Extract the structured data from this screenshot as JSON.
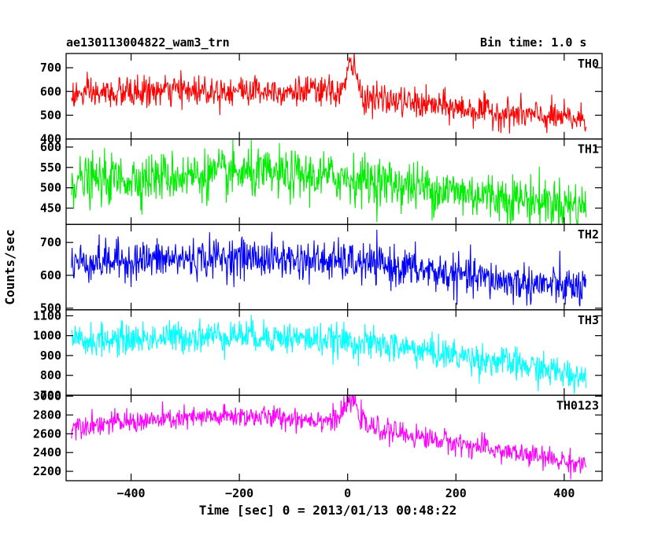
{
  "header": {
    "title": "ae130113004822_wam3_trn",
    "bin_time": "Bin time: 1.0 s"
  },
  "chart_data": {
    "type": "line",
    "title": "ae130113004822_wam3_trn",
    "subtitle": "Bin time: 1.0 s",
    "xlabel": "Time [sec] 0 = 2013/01/13 00:48:22",
    "ylabel": "Counts/sec",
    "xlim": [
      -520,
      470
    ],
    "x_ticks": [
      -400,
      -200,
      0,
      200,
      400
    ],
    "x_tick_labels": [
      "−400",
      "−200",
      "0",
      "200",
      "400"
    ],
    "x_range_data": [
      -510,
      440
    ],
    "bin_time_s": 1.0,
    "grid": false,
    "panels": [
      {
        "name": "TH0",
        "color": "#ff0000",
        "ylim": [
          400,
          760
        ],
        "y_ticks": [
          400,
          500,
          600,
          700
        ],
        "noise_sigma": 32,
        "trend": [
          [
            -510,
            585
          ],
          [
            -300,
            605
          ],
          [
            -150,
            605
          ],
          [
            0,
            595
          ],
          [
            30,
            575
          ],
          [
            100,
            555
          ],
          [
            200,
            530
          ],
          [
            300,
            505
          ],
          [
            440,
            480
          ]
        ],
        "peaks": [
          {
            "x": 8,
            "height": 130,
            "width": 8
          }
        ]
      },
      {
        "name": "TH1",
        "color": "#00ee00",
        "ylim": [
          410,
          620
        ],
        "y_ticks": [
          450,
          500,
          550,
          600
        ],
        "noise_sigma": 30,
        "trend": [
          [
            -510,
            515
          ],
          [
            -300,
            530
          ],
          [
            -200,
            535
          ],
          [
            0,
            525
          ],
          [
            200,
            490
          ],
          [
            300,
            475
          ],
          [
            440,
            455
          ]
        ],
        "peaks": []
      },
      {
        "name": "TH2",
        "color": "#0000ff",
        "ylim": [
          495,
          755
        ],
        "y_ticks": [
          500,
          600,
          700
        ],
        "noise_sigma": 30,
        "trend": [
          [
            -510,
            640
          ],
          [
            -300,
            650
          ],
          [
            -200,
            655
          ],
          [
            0,
            640
          ],
          [
            100,
            625
          ],
          [
            200,
            600
          ],
          [
            300,
            580
          ],
          [
            440,
            560
          ]
        ],
        "peaks": []
      },
      {
        "name": "TH3",
        "color": "#00ffff",
        "ylim": [
          700,
          1130
        ],
        "y_ticks": [
          700,
          800,
          900,
          1000,
          1100
        ],
        "noise_sigma": 40,
        "trend": [
          [
            -510,
            970
          ],
          [
            -200,
            1005
          ],
          [
            0,
            970
          ],
          [
            100,
            940
          ],
          [
            200,
            900
          ],
          [
            300,
            860
          ],
          [
            440,
            790
          ]
        ],
        "peaks": []
      },
      {
        "name": "TH0123",
        "color": "#ff00ff",
        "ylim": [
          2100,
          3010
        ],
        "y_ticks": [
          2200,
          2400,
          2600,
          2800,
          3000
        ],
        "noise_sigma": 60,
        "trend": [
          [
            -510,
            2690
          ],
          [
            -300,
            2760
          ],
          [
            -200,
            2790
          ],
          [
            0,
            2740
          ],
          [
            30,
            2680
          ],
          [
            100,
            2600
          ],
          [
            200,
            2500
          ],
          [
            300,
            2400
          ],
          [
            440,
            2270
          ]
        ],
        "peaks": [
          {
            "x": 8,
            "height": 230,
            "width": 12
          }
        ]
      }
    ]
  }
}
